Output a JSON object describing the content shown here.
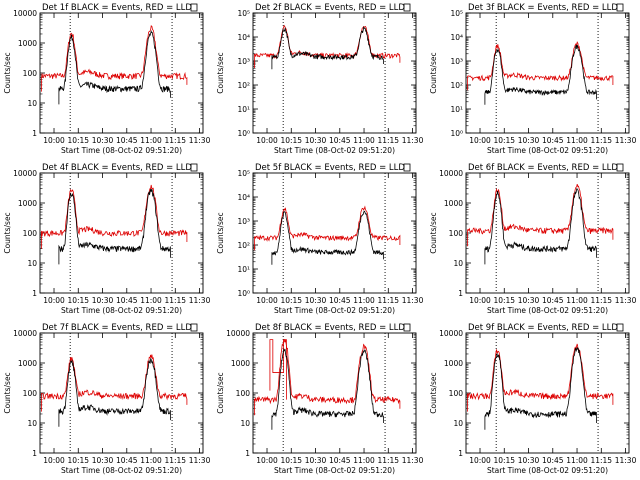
{
  "figure": {
    "start_time": "08-Oct-02 09:51:20",
    "black_label": "Events",
    "red_label": "LLD"
  },
  "chart_data": [
    {
      "type": "line",
      "title": "Det 1f BLACK = Events, RED = LLD",
      "xlabel": "Start Time (08-Oct-02 09:51:20)",
      "ylabel": "Counts/sec",
      "x_ticks": [
        "10:00",
        "10:15",
        "10:30",
        "10:45",
        "11:00",
        "11:15",
        "11:30"
      ],
      "y_ticks": [
        "1",
        "10",
        "100",
        "1000",
        "10000"
      ],
      "ylog": [
        0,
        4
      ],
      "series": [
        {
          "name": "Events",
          "color": "#000000",
          "base": 30,
          "p1": 1500,
          "p2": 2000,
          "start": 10.05,
          "end": 11.2
        },
        {
          "name": "LLD",
          "color": "#dd0000",
          "base": 80,
          "p1": 2000,
          "p2": 3000,
          "start": 9.87,
          "end": 11.37
        }
      ],
      "vlines": [
        "10:10",
        "11:13"
      ]
    },
    {
      "type": "line",
      "title": "Det 2f BLACK = Events, RED = LLD",
      "xlabel": "Start Time (08-Oct-02 09:51:20)",
      "ylabel": "Counts/sec",
      "x_ticks": [
        "10:00",
        "10:15",
        "10:30",
        "10:45",
        "11:00",
        "11:15",
        "11:30"
      ],
      "y_ticks": [
        "10⁰",
        "10¹",
        "10²",
        "10³",
        "10⁴",
        "10⁵"
      ],
      "ylog": [
        0,
        5
      ],
      "series": [
        {
          "name": "Events",
          "color": "#000000",
          "base": 1500,
          "p1": 20000,
          "p2": 20000,
          "start": 10.05,
          "end": 11.2
        },
        {
          "name": "LLD",
          "color": "#dd0000",
          "base": 1700,
          "p1": 25000,
          "p2": 25000,
          "start": 9.87,
          "end": 11.37
        }
      ],
      "vlines": [
        "10:10",
        "11:13"
      ]
    },
    {
      "type": "line",
      "title": "Det 3f BLACK = Events, RED = LLD",
      "xlabel": "Start Time (08-Oct-02 09:51:20)",
      "ylabel": "Counts/sec",
      "x_ticks": [
        "10:00",
        "10:15",
        "10:30",
        "10:45",
        "11:00",
        "11:15",
        "11:30"
      ],
      "y_ticks": [
        "10⁰",
        "10¹",
        "10²",
        "10³",
        "10⁴",
        "10⁵"
      ],
      "ylog": [
        0,
        5
      ],
      "series": [
        {
          "name": "Events",
          "color": "#000000",
          "base": 50,
          "p1": 3000,
          "p2": 4000,
          "start": 10.05,
          "end": 11.2
        },
        {
          "name": "LLD",
          "color": "#dd0000",
          "base": 200,
          "p1": 4000,
          "p2": 5000,
          "start": 9.87,
          "end": 11.37
        }
      ],
      "vlines": [
        "10:10",
        "11:13"
      ]
    },
    {
      "type": "line",
      "title": "Det 4f BLACK = Events, RED = LLD",
      "xlabel": "Start Time (08-Oct-02 09:51:20)",
      "ylabel": "Counts/sec",
      "x_ticks": [
        "10:00",
        "10:15",
        "10:30",
        "10:45",
        "11:00",
        "11:15",
        "11:30"
      ],
      "y_ticks": [
        "1",
        "10",
        "100",
        "1000",
        "10000"
      ],
      "ylog": [
        0,
        4
      ],
      "series": [
        {
          "name": "Events",
          "color": "#000000",
          "base": 30,
          "p1": 2000,
          "p2": 2500,
          "start": 10.05,
          "end": 11.2
        },
        {
          "name": "LLD",
          "color": "#dd0000",
          "base": 100,
          "p1": 2500,
          "p2": 3500,
          "start": 9.87,
          "end": 11.37
        }
      ],
      "vlines": [
        "10:10",
        "11:13"
      ]
    },
    {
      "type": "line",
      "title": "Det 5f BLACK = Events, RED = LLD",
      "xlabel": "Start Time (08-Oct-02 09:51:20)",
      "ylabel": "Counts/sec",
      "x_ticks": [
        "10:00",
        "10:15",
        "10:30",
        "10:45",
        "11:00",
        "11:15",
        "11:30"
      ],
      "y_ticks": [
        "10⁰",
        "10¹",
        "10²",
        "10³",
        "10⁴",
        "10⁵"
      ],
      "ylog": [
        0,
        5
      ],
      "series": [
        {
          "name": "Events",
          "color": "#000000",
          "base": 50,
          "p1": 2000,
          "p2": 2500,
          "start": 10.05,
          "end": 11.2
        },
        {
          "name": "LLD",
          "color": "#dd0000",
          "base": 200,
          "p1": 3000,
          "p2": 3500,
          "start": 9.87,
          "end": 11.37
        }
      ],
      "vlines": [
        "10:10",
        "11:13"
      ]
    },
    {
      "type": "line",
      "title": "Det 6f BLACK = Events, RED = LLD",
      "xlabel": "Start Time (08-Oct-02 09:51:20)",
      "ylabel": "Counts/sec",
      "x_ticks": [
        "10:00",
        "10:15",
        "10:30",
        "10:45",
        "11:00",
        "11:15",
        "11:30"
      ],
      "y_ticks": [
        "1",
        "10",
        "100",
        "1000",
        "10000"
      ],
      "ylog": [
        0,
        4
      ],
      "series": [
        {
          "name": "Events",
          "color": "#000000",
          "base": 30,
          "p1": 2000,
          "p2": 2500,
          "start": 10.05,
          "end": 11.2
        },
        {
          "name": "LLD",
          "color": "#dd0000",
          "base": 120,
          "p1": 2500,
          "p2": 3500,
          "start": 9.87,
          "end": 11.37
        }
      ],
      "vlines": [
        "10:10",
        "11:13"
      ]
    },
    {
      "type": "line",
      "title": "Det 7f BLACK = Events, RED = LLD",
      "xlabel": "Start Time (08-Oct-02 09:51:20)",
      "ylabel": "Counts/sec",
      "x_ticks": [
        "10:00",
        "10:15",
        "10:30",
        "10:45",
        "11:00",
        "11:15",
        "11:30"
      ],
      "y_ticks": [
        "1",
        "10",
        "100",
        "1000",
        "10000"
      ],
      "ylog": [
        0,
        4
      ],
      "series": [
        {
          "name": "Events",
          "color": "#000000",
          "base": 25,
          "p1": 1000,
          "p2": 1300,
          "start": 10.05,
          "end": 11.2
        },
        {
          "name": "LLD",
          "color": "#dd0000",
          "base": 80,
          "p1": 1300,
          "p2": 1600,
          "start": 9.87,
          "end": 11.37
        }
      ],
      "vlines": [
        "10:10",
        "11:13"
      ]
    },
    {
      "type": "line",
      "title": "Det 8f BLACK = Events, RED = LLD",
      "xlabel": "Start Time (08-Oct-02 09:51:20)",
      "ylabel": "Counts/sec",
      "x_ticks": [
        "10:00",
        "10:15",
        "10:30",
        "10:45",
        "11:00",
        "11:15",
        "11:30"
      ],
      "y_ticks": [
        "1",
        "10",
        "100",
        "1000",
        "10000"
      ],
      "ylog": [
        0,
        4
      ],
      "series": [
        {
          "name": "Events",
          "color": "#000000",
          "base": 20,
          "p1": 2500,
          "p2": 2500,
          "start": 10.05,
          "end": 11.2
        },
        {
          "name": "LLD",
          "color": "#dd0000",
          "base": 60,
          "p1": 6000,
          "p2": 3500,
          "start": 9.87,
          "end": 11.37,
          "rect": [
            10.03,
            10.2
          ]
        }
      ],
      "vlines": [
        "10:10",
        "11:13"
      ]
    },
    {
      "type": "line",
      "title": "Det 9f BLACK = Events, RED = LLD",
      "xlabel": "Start Time (08-Oct-02 09:51:20)",
      "ylabel": "Counts/sec",
      "x_ticks": [
        "10:00",
        "10:15",
        "10:30",
        "10:45",
        "11:00",
        "11:15",
        "11:30"
      ],
      "y_ticks": [
        "1",
        "10",
        "100",
        "1000",
        "10000"
      ],
      "ylog": [
        0,
        4
      ],
      "series": [
        {
          "name": "Events",
          "color": "#000000",
          "base": 20,
          "p1": 2000,
          "p2": 3000,
          "start": 10.05,
          "end": 11.2
        },
        {
          "name": "LLD",
          "color": "#dd0000",
          "base": 80,
          "p1": 2500,
          "p2": 4000,
          "start": 9.87,
          "end": 11.37
        }
      ],
      "vlines": [
        "10:10",
        "11:13"
      ]
    }
  ]
}
